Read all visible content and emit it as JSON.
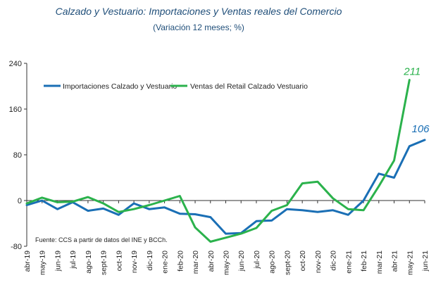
{
  "chart_data": {
    "type": "line",
    "title": "Calzado y Vestuario: Importaciones y Ventas reales del Comercio",
    "subtitle": "(Variación 12 meses; %)",
    "categories": [
      "abr-19",
      "may-19",
      "jun-19",
      "jul-19",
      "ago-19",
      "sept-19",
      "oct-19",
      "nov-19",
      "dic-19",
      "ene-20",
      "feb-20",
      "mar-20",
      "abr-20",
      "may-20",
      "jun-20",
      "jul-20",
      "ago-20",
      "sept-20",
      "oct-20",
      "nov-20",
      "dic-20",
      "ene-21",
      "feb-21",
      "mar-21",
      "abr-21",
      "may-21",
      "jun-21"
    ],
    "yticks": [
      -80,
      0,
      80,
      160,
      240
    ],
    "ylim": [
      -80,
      240
    ],
    "series": [
      {
        "name": "Importaciones Calzado y Vestuario",
        "color": "#1a6fb5",
        "values": [
          -8,
          0,
          -15,
          -3,
          -18,
          -14,
          -25,
          -5,
          -15,
          -12,
          -23,
          -24,
          -29,
          -58,
          -57,
          -36,
          -35,
          -15,
          -17,
          -20,
          -17,
          -25,
          0,
          47,
          40,
          95,
          106
        ]
      },
      {
        "name": "Ventas del Retail Calzado Vestuario",
        "color": "#2bb24c",
        "values": [
          -5,
          5,
          -3,
          -2,
          6,
          -5,
          -20,
          -15,
          -8,
          0,
          8,
          -47,
          -72,
          -65,
          -58,
          -48,
          -18,
          -8,
          30,
          33,
          4,
          -15,
          -17,
          25,
          70,
          211,
          null
        ]
      }
    ],
    "end_labels": {
      "Importaciones Calzado y Vestuario": "106",
      "Ventas del Retail Calzado Vestuario": "211"
    },
    "source": "Fuente: CCS a partir de datos del INE y BCCh.",
    "legend": "top-left",
    "grid": false
  }
}
